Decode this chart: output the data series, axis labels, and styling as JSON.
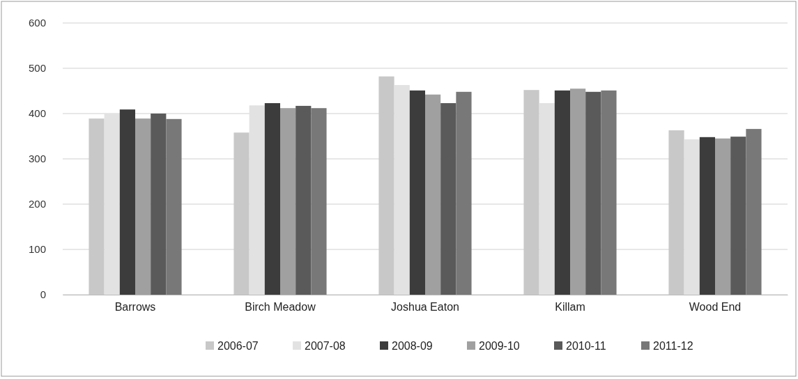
{
  "chart_data": {
    "type": "bar",
    "categories": [
      "Barrows",
      "Birch Meadow",
      "Joshua Eaton",
      "Killam",
      "Wood End"
    ],
    "series": [
      {
        "name": "2006-07",
        "color": "#c8c8c8",
        "values": [
          389,
          358,
          482,
          452,
          363
        ]
      },
      {
        "name": "2007-08",
        "color": "#e2e2e2",
        "values": [
          400,
          418,
          463,
          423,
          343
        ]
      },
      {
        "name": "2008-09",
        "color": "#3c3c3c",
        "values": [
          409,
          423,
          451,
          451,
          348
        ]
      },
      {
        "name": "2009-10",
        "color": "#a0a0a0",
        "values": [
          389,
          412,
          442,
          455,
          345
        ]
      },
      {
        "name": "2010-11",
        "color": "#5a5a5a",
        "values": [
          400,
          417,
          423,
          448,
          349
        ]
      },
      {
        "name": "2011-12",
        "color": "#787878",
        "values": [
          388,
          412,
          448,
          451,
          366
        ]
      }
    ],
    "ylim": [
      0,
      600
    ],
    "yticks": [
      0,
      100,
      200,
      300,
      400,
      500,
      600
    ],
    "grid": "y",
    "legend": "bottom"
  }
}
